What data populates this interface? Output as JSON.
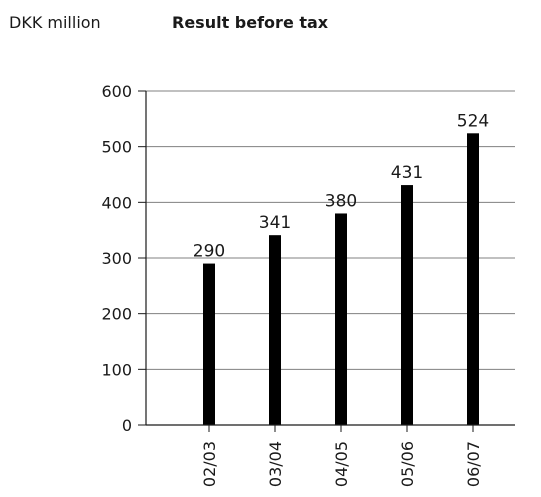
{
  "header": {
    "unit_label": "DKK million",
    "title": "Result before tax"
  },
  "chart_data": {
    "type": "bar",
    "title": "Result before tax",
    "ylabel": "DKK million",
    "xlabel": "",
    "categories": [
      "02/03",
      "03/04",
      "04/05",
      "05/06",
      "06/07"
    ],
    "values": [
      290,
      341,
      380,
      431,
      524
    ],
    "data_labels": [
      "290",
      "341",
      "380",
      "431",
      "524"
    ],
    "ylim": [
      0,
      600
    ],
    "yticks": [
      0,
      100,
      200,
      300,
      400,
      500,
      600
    ],
    "ytick_labels": [
      "0",
      "100",
      "200",
      "300",
      "400",
      "500",
      "600"
    ],
    "grid": true,
    "legend": "none",
    "bar_color": "#000000",
    "grid_color": "#808080"
  }
}
